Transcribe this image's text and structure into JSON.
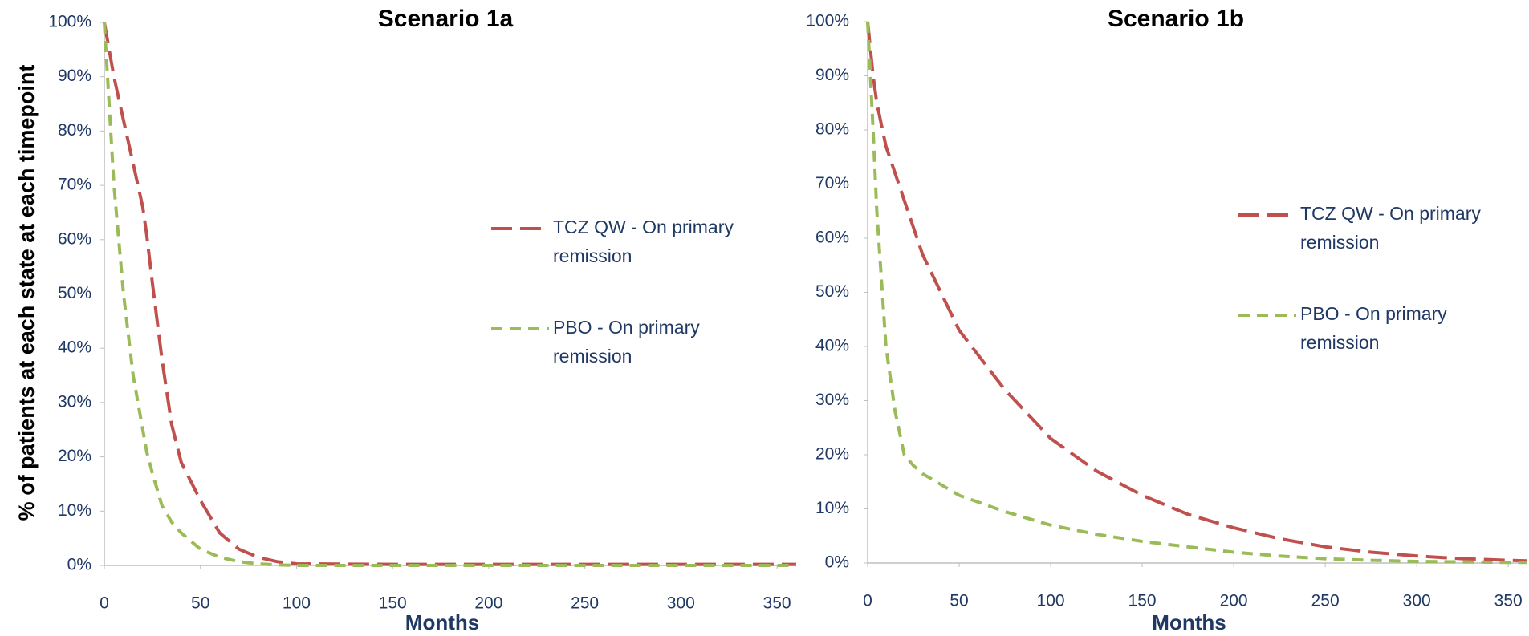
{
  "chart_data": [
    {
      "type": "line",
      "title": "Scenario 1a",
      "x_label": "Months",
      "y_label": "% of patients at each state at each timepoint",
      "x": [
        0,
        5,
        10,
        15,
        20,
        22,
        25,
        30,
        35,
        40,
        50,
        60,
        70,
        80,
        90,
        100,
        150,
        200,
        250,
        300,
        350,
        360
      ],
      "series": [
        {
          "name": "TCZ QW - On primary remission",
          "color": "#c0504d",
          "values": [
            100,
            90,
            82,
            74,
            66,
            61,
            52,
            38,
            26,
            19,
            12,
            6,
            3,
            1.5,
            0.7,
            0.3,
            0.2,
            0.2,
            0.2,
            0.2,
            0.2,
            0.2
          ]
        },
        {
          "name": "PBO - On primary remission",
          "color": "#9bbb59",
          "values": [
            100,
            70,
            50,
            35,
            25,
            21,
            17,
            11,
            8,
            6,
            3,
            1.5,
            0.7,
            0.3,
            0.1,
            0,
            0,
            0,
            0,
            0,
            0,
            0
          ]
        }
      ],
      "xlim": [
        0,
        360
      ],
      "ylim": [
        0,
        100
      ],
      "xticks": [
        0,
        50,
        100,
        150,
        200,
        250,
        300,
        350
      ],
      "yticks": [
        {
          "value": 0,
          "label": "0%"
        },
        {
          "value": 10,
          "label": "10%"
        },
        {
          "value": 20,
          "label": "20%"
        },
        {
          "value": 30,
          "label": "30%"
        },
        {
          "value": 40,
          "label": "40%"
        },
        {
          "value": 50,
          "label": "50%"
        },
        {
          "value": 60,
          "label": "60%"
        },
        {
          "value": 70,
          "label": "70%"
        },
        {
          "value": 80,
          "label": "80%"
        },
        {
          "value": 90,
          "label": "90%"
        },
        {
          "value": 100,
          "label": "100%"
        }
      ]
    },
    {
      "type": "line",
      "title": "Scenario 1b",
      "x_label": "Months",
      "x": [
        0,
        3,
        5,
        10,
        15,
        20,
        25,
        30,
        50,
        75,
        100,
        125,
        150,
        175,
        200,
        225,
        250,
        275,
        300,
        325,
        350,
        360
      ],
      "series": [
        {
          "name": "TCZ QW - On primary remission",
          "color": "#c0504d",
          "values": [
            100,
            90,
            85,
            77,
            72,
            67,
            62,
            57,
            43,
            32,
            23,
            17,
            12.5,
            9,
            6.5,
            4.5,
            3,
            2,
            1.3,
            0.8,
            0.5,
            0.4
          ]
        },
        {
          "name": "PBO - On primary remission",
          "color": "#9bbb59",
          "values": [
            100,
            80,
            65,
            40,
            28,
            20,
            18,
            16.5,
            12.5,
            9.5,
            7,
            5.3,
            4,
            3,
            2,
            1.3,
            0.8,
            0.5,
            0.3,
            0.2,
            0.1,
            0.1
          ]
        }
      ],
      "xlim": [
        0,
        360
      ],
      "ylim": [
        0,
        100
      ],
      "xticks": [
        0,
        50,
        100,
        150,
        200,
        250,
        300,
        350
      ],
      "yticks": [
        {
          "value": 0,
          "label": "0%"
        },
        {
          "value": 10,
          "label": "10%"
        },
        {
          "value": 20,
          "label": "20%"
        },
        {
          "value": 30,
          "label": "30%"
        },
        {
          "value": 40,
          "label": "40%"
        },
        {
          "value": 50,
          "label": "50%"
        },
        {
          "value": 60,
          "label": "60%"
        },
        {
          "value": 70,
          "label": "70%"
        },
        {
          "value": 80,
          "label": "80%"
        },
        {
          "value": 90,
          "label": "90%"
        },
        {
          "value": 100,
          "label": "100%"
        }
      ]
    }
  ]
}
